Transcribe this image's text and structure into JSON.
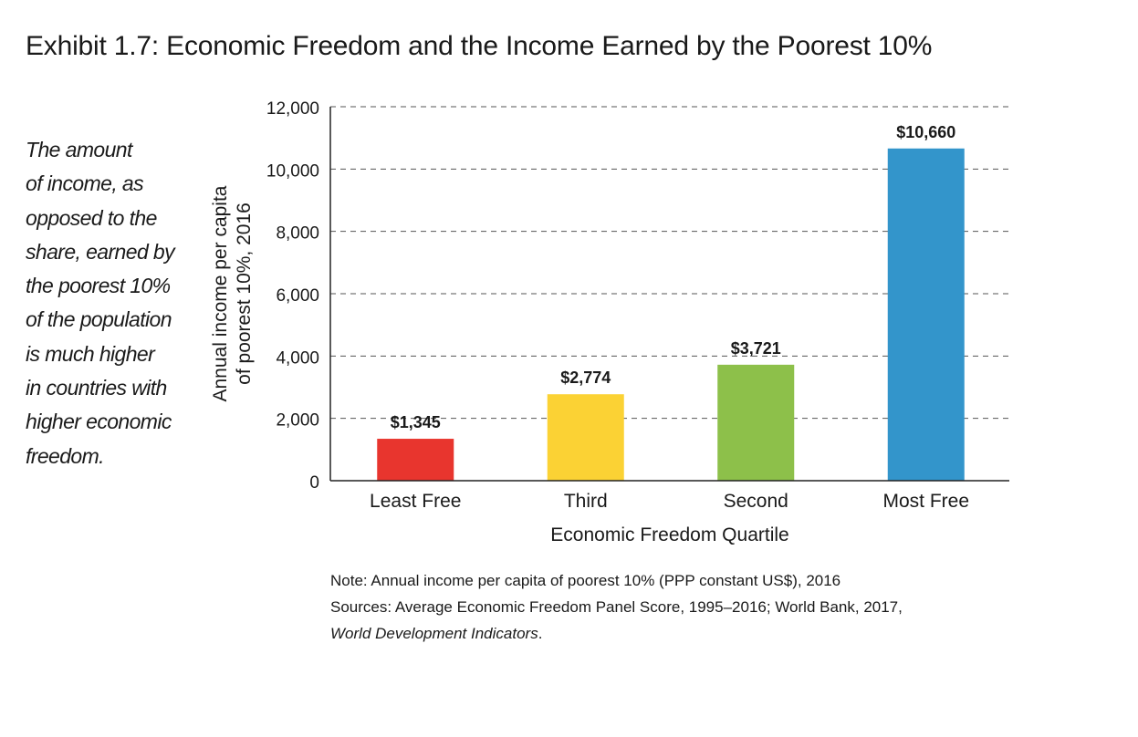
{
  "title": "Exhibit 1.7: Economic Freedom and the Income Earned by the Poorest 10%",
  "sidebar_lines": [
    "The amount",
    "of income, as",
    "opposed to the",
    "share, earned by",
    "the poorest 10%",
    "of the population",
    "is much higher",
    "in countries with",
    "higher economic",
    "freedom."
  ],
  "notes": {
    "note": "Note: Annual income per capita of poorest 10% (PPP constant US$), 2016",
    "sources": "Sources: Average Economic Freedom Panel Score, 1995–2016; World Bank, 2017,",
    "sources_italic": "World Development Indicators",
    "sources_end": "."
  },
  "chart_data": {
    "type": "bar",
    "categories": [
      "Least Free",
      "Third",
      "Second",
      "Most Free"
    ],
    "values": [
      1345,
      2774,
      3721,
      10660
    ],
    "data_labels": [
      "$1,345",
      "$2,774",
      "$3,721",
      "$10,660"
    ],
    "colors": [
      "#e8352e",
      "#fbd234",
      "#8dc04a",
      "#3395cb"
    ],
    "xlabel": "Economic Freedom Quartile",
    "ylabel_lines": [
      "Annual income per capita",
      "of poorest 10%, 2016"
    ],
    "ylim": [
      0,
      12000
    ],
    "yticks": [
      0,
      2000,
      4000,
      6000,
      8000,
      10000,
      12000
    ],
    "ytick_labels": [
      "0",
      "2,000",
      "4,000",
      "6,000",
      "8,000",
      "10,000",
      "12,000"
    ],
    "grid": "dashed"
  }
}
